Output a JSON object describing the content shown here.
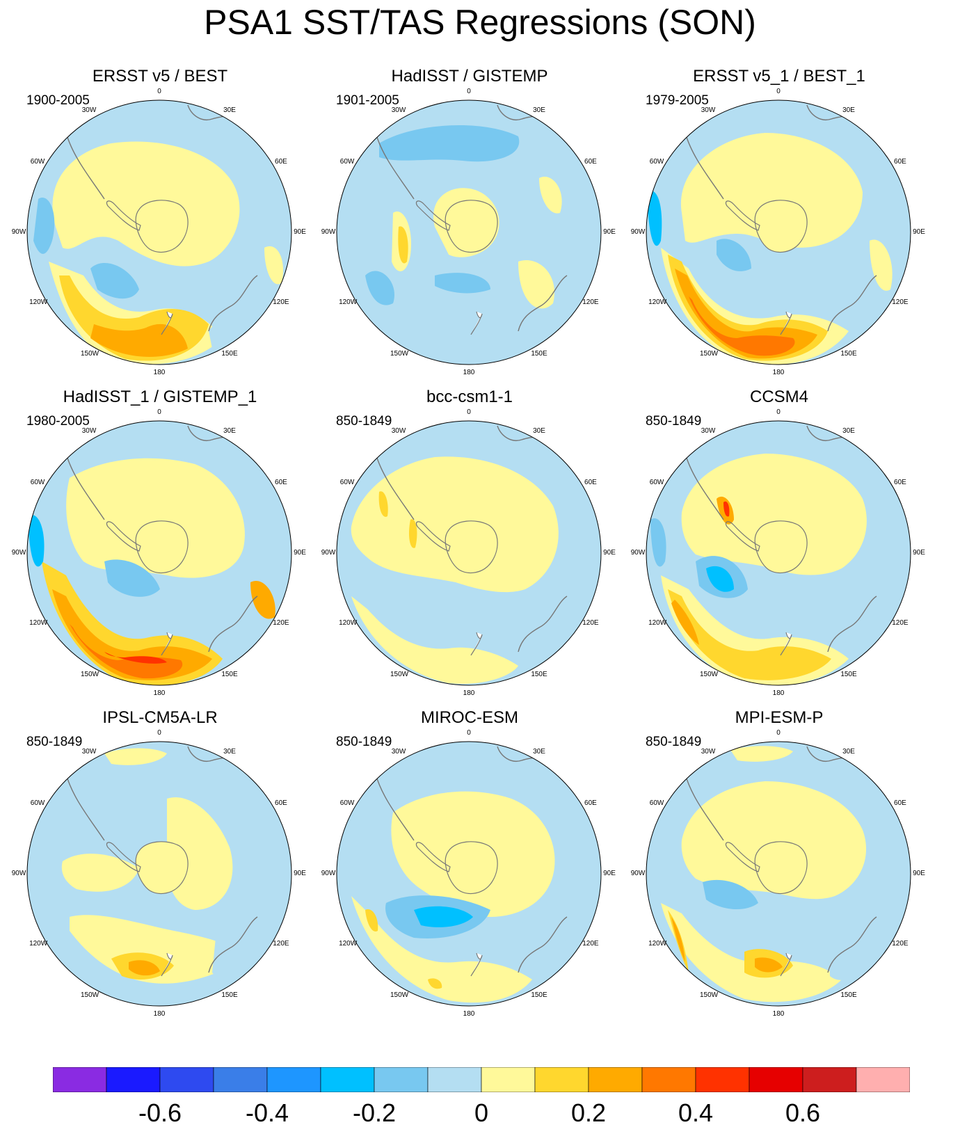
{
  "title": "PSA1 SST/TAS Regressions (SON)",
  "longitude_labels": [
    "0",
    "30E",
    "60E",
    "90E",
    "120E",
    "150E",
    "180",
    "150W",
    "120W",
    "90W",
    "60W",
    "30W"
  ],
  "panels": [
    {
      "title": "ERSST v5 / BEST",
      "period": "1900-2005"
    },
    {
      "title": "HadISST / GISTEMP",
      "period": "1901-2005"
    },
    {
      "title": "ERSST v5_1 / BEST_1",
      "period": "1979-2005"
    },
    {
      "title": "HadISST_1 / GISTEMP_1",
      "period": "1980-2005"
    },
    {
      "title": "bcc-csm1-1",
      "period": "850-1849"
    },
    {
      "title": "CCSM4",
      "period": "850-1849"
    },
    {
      "title": "IPSL-CM5A-LR",
      "period": "850-1849"
    },
    {
      "title": "MIROC-ESM",
      "period": "850-1849"
    },
    {
      "title": "MPI-ESM-P",
      "period": "850-1849"
    }
  ],
  "colorbar": {
    "colors": [
      "#8a2be2",
      "#1a1aff",
      "#2e4af0",
      "#3a7ee8",
      "#1e96ff",
      "#00c0ff",
      "#78c8f0",
      "#b4def2",
      "#fff99a",
      "#ffd72e",
      "#ffaa00",
      "#ff7800",
      "#ff3200",
      "#e60000",
      "#cd1e1e",
      "#ffafaf"
    ],
    "tick_labels": [
      "-0.6",
      "-0.4",
      "-0.2",
      "0",
      "0.2",
      "0.4",
      "0.6"
    ]
  }
}
